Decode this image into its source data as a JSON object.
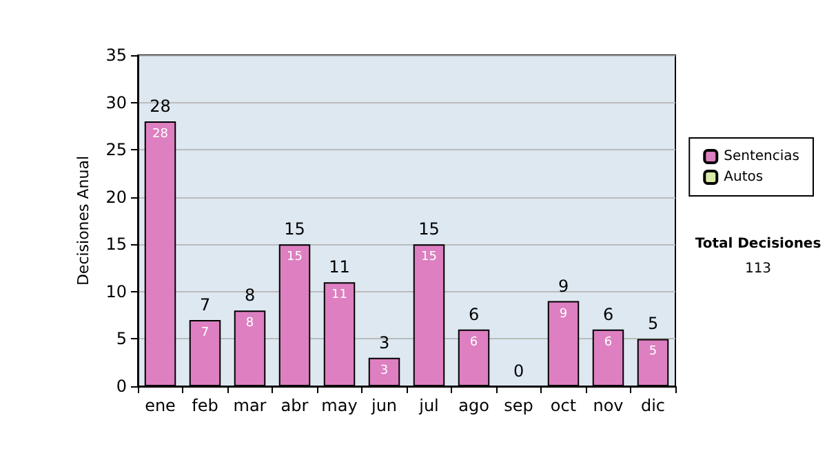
{
  "chart_data": {
    "type": "bar",
    "ylabel": "Decisiones Anual",
    "categories": [
      "ene",
      "feb",
      "mar",
      "abr",
      "may",
      "jun",
      "jul",
      "ago",
      "sep",
      "oct",
      "nov",
      "dic"
    ],
    "series": [
      {
        "name": "Sentencias",
        "color": "#dd7fc0",
        "values": [
          28,
          7,
          8,
          15,
          11,
          3,
          15,
          6,
          0,
          9,
          6,
          5
        ],
        "value_labels": [
          "28",
          "7",
          "8",
          "15",
          "11",
          "3",
          "15",
          "6",
          null,
          "9",
          "6",
          "5"
        ]
      },
      {
        "name": "Autos",
        "color": "#d9eaa6",
        "values": [
          0,
          0,
          0,
          0,
          0,
          0,
          0,
          0,
          0,
          0,
          0,
          0
        ]
      }
    ],
    "stacked": true,
    "totals": [
      "28",
      "7",
      "8",
      "15",
      "11",
      "3",
      "15",
      "6",
      "0",
      "9",
      "6",
      "5"
    ],
    "ylim": [
      0,
      35
    ],
    "yticks": [
      0,
      5,
      10,
      15,
      20,
      25,
      30,
      35
    ],
    "grid": "y",
    "legend": "right",
    "annotations": [
      "Total Decisiones",
      "113"
    ]
  }
}
